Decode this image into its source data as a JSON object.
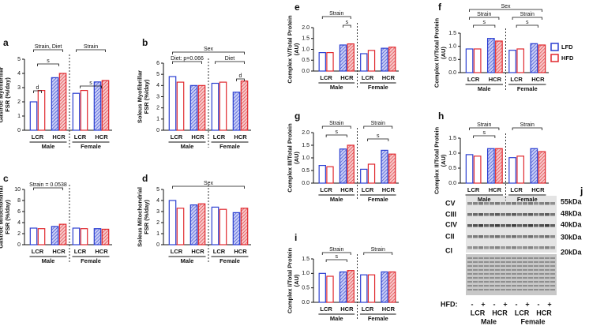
{
  "legend": [
    {
      "name": "LFD",
      "color": "#2b3fd1"
    },
    {
      "name": "HFD",
      "color": "#e0282e"
    }
  ],
  "chart_data": [
    {
      "type": "bar",
      "panel": "a",
      "y_label": [
        "Gastroc Myofibrillar",
        "FSR (%/day)"
      ],
      "groups": [
        "LCR",
        "HCR",
        "LCR",
        "HCR"
      ],
      "sexes": [
        "Male",
        "Female"
      ],
      "series": [
        {
          "values": [
            2.0,
            3.7,
            2.6,
            3.4
          ]
        },
        {
          "values": [
            2.8,
            4.0,
            2.8,
            3.5
          ]
        }
      ],
      "ylim": [
        0,
        5
      ],
      "yticks": [
        0,
        1,
        2,
        3,
        4,
        5
      ],
      "annotations": [
        "Strain, Diet",
        "Strain",
        "s",
        "d",
        "s"
      ]
    },
    {
      "type": "bar",
      "panel": "b",
      "y_label": [
        "Soleus Myofibrillar",
        "FSR (%/day)"
      ],
      "groups": [
        "LCR",
        "HCR",
        "LCR",
        "HCR"
      ],
      "sexes": [
        "Male",
        "Female"
      ],
      "series": [
        {
          "values": [
            4.8,
            4.0,
            4.2,
            3.4
          ]
        },
        {
          "values": [
            4.3,
            4.0,
            4.3,
            4.4
          ]
        }
      ],
      "ylim": [
        0,
        6
      ],
      "yticks": [
        0,
        1,
        2,
        3,
        4,
        5,
        6
      ],
      "annotations": [
        "Sex",
        "Diet: p=0.066",
        "Diet",
        "d"
      ]
    },
    {
      "type": "bar",
      "panel": "c",
      "y_label": [
        "Gastroc Mitochondrial",
        "FSR (%/day)"
      ],
      "groups": [
        "LCR",
        "HCR",
        "LCR",
        "HCR"
      ],
      "sexes": [
        "Male",
        "Female"
      ],
      "series": [
        {
          "values": [
            3.0,
            3.3,
            3.0,
            2.9
          ]
        },
        {
          "values": [
            2.9,
            3.7,
            2.9,
            2.8
          ]
        }
      ],
      "ylim": [
        0,
        10
      ],
      "yticks": [
        0,
        2,
        4,
        6,
        8,
        10
      ],
      "annotations": [
        "Strain = 0.0538"
      ]
    },
    {
      "type": "bar",
      "panel": "d",
      "y_label": [
        "Soleus Mitochondrial",
        "FSR (%/day)"
      ],
      "groups": [
        "LCR",
        "HCR",
        "LCR",
        "HCR"
      ],
      "sexes": [
        "Male",
        "Female"
      ],
      "series": [
        {
          "values": [
            4.0,
            3.6,
            3.4,
            2.9
          ]
        },
        {
          "values": [
            3.3,
            3.7,
            3.2,
            3.3
          ]
        }
      ],
      "ylim": [
        0,
        5
      ],
      "yticks": [
        0,
        1,
        2,
        3,
        4,
        5
      ],
      "annotations": [
        "Sex"
      ]
    },
    {
      "type": "bar",
      "panel": "e",
      "y_label": [
        "Complex V/Total Protein",
        "(AU)"
      ],
      "groups": [
        "LCR",
        "HCR",
        "LCR",
        "HCR"
      ],
      "sexes": [
        "Male",
        "Female"
      ],
      "series": [
        {
          "values": [
            0.85,
            1.2,
            0.8,
            1.05
          ]
        },
        {
          "values": [
            0.85,
            1.25,
            0.95,
            1.1
          ]
        }
      ],
      "ylim": [
        0,
        2
      ],
      "yticks": [
        {
          "value": 0,
          "label": "0.0"
        },
        {
          "value": 0.5,
          "label": "0.5"
        },
        {
          "value": 1,
          "label": "1.0"
        },
        {
          "value": 1.5,
          "label": "1.5"
        },
        {
          "value": 2,
          "label": "2.0"
        }
      ],
      "annotations": [
        "Strain",
        "s"
      ]
    },
    {
      "type": "bar",
      "panel": "f",
      "y_label": [
        "Complex IV/Total Protein",
        "(AU)"
      ],
      "groups": [
        "LCR",
        "HCR",
        "LCR",
        "HCR"
      ],
      "sexes": [
        "Male",
        "Female"
      ],
      "series": [
        {
          "values": [
            0.9,
            1.3,
            0.85,
            1.1
          ]
        },
        {
          "values": [
            0.9,
            1.2,
            0.9,
            1.05
          ]
        }
      ],
      "ylim": [
        0,
        1.5
      ],
      "yticks": [
        {
          "value": 0,
          "label": "0.0"
        },
        {
          "value": 0.5,
          "label": "0.5"
        },
        {
          "value": 1,
          "label": "1.0"
        },
        {
          "value": 1.5,
          "label": "1.5"
        }
      ],
      "annotations": [
        "Sex",
        "Strain",
        "Strain",
        "s",
        "s"
      ]
    },
    {
      "type": "bar",
      "panel": "g",
      "y_label": [
        "Complex III/Total Protein",
        "(AU)"
      ],
      "groups": [
        "LCR",
        "HCR",
        "LCR",
        "HCR"
      ],
      "sexes": [
        "Male",
        "Female"
      ],
      "series": [
        {
          "values": [
            0.7,
            1.35,
            0.55,
            1.3
          ]
        },
        {
          "values": [
            0.65,
            1.5,
            0.75,
            1.15
          ]
        }
      ],
      "ylim": [
        0,
        2
      ],
      "yticks": [
        {
          "value": 0,
          "label": "0.0"
        },
        {
          "value": 0.5,
          "label": "0.5"
        },
        {
          "value": 1,
          "label": "1.0"
        },
        {
          "value": 1.5,
          "label": "1.5"
        },
        {
          "value": 2,
          "label": "2.0"
        }
      ],
      "annotations": [
        "Strain",
        "Strain",
        "s",
        "s"
      ]
    },
    {
      "type": "bar",
      "panel": "h",
      "y_label": [
        "Complex II/Total Protein",
        "(AU)"
      ],
      "groups": [
        "LCR",
        "HCR",
        "LCR",
        "HCR"
      ],
      "sexes": [
        "Male",
        "Female"
      ],
      "series": [
        {
          "values": [
            0.95,
            1.15,
            0.85,
            1.15
          ]
        },
        {
          "values": [
            0.9,
            1.15,
            0.9,
            1.05
          ]
        }
      ],
      "ylim": [
        0,
        1.5
      ],
      "yticks": [
        {
          "value": 0,
          "label": "0.0"
        },
        {
          "value": 0.5,
          "label": "0.5"
        },
        {
          "value": 1,
          "label": "1.0"
        },
        {
          "value": 1.5,
          "label": "1.5"
        }
      ],
      "annotations": [
        "Strain",
        "Strain",
        "s"
      ]
    },
    {
      "type": "bar",
      "panel": "i",
      "y_label": [
        "Complex I/Total Protein",
        "(AU)"
      ],
      "groups": [
        "LCR",
        "HCR",
        "LCR",
        "HCR"
      ],
      "sexes": [
        "Male",
        "Female"
      ],
      "series": [
        {
          "values": [
            1.0,
            1.05,
            0.95,
            1.05
          ]
        },
        {
          "values": [
            0.9,
            1.1,
            0.95,
            1.05
          ]
        }
      ],
      "ylim": [
        0,
        1.5
      ],
      "yticks": [
        {
          "value": 0,
          "label": "0.0"
        },
        {
          "value": 0.5,
          "label": "0.5"
        },
        {
          "value": 1,
          "label": "1.0"
        },
        {
          "value": 1.5,
          "label": "1.5"
        }
      ],
      "annotations": [
        "Strain",
        "Strain",
        "s"
      ]
    }
  ],
  "blot": {
    "panel": "j",
    "complexes": [
      "CV",
      "CIII",
      "CIV",
      "CII",
      "CI"
    ],
    "weights": [
      "55kDa",
      "48kDa",
      "40kDa",
      "30kDa",
      "20kDa"
    ],
    "hfd_label": "HFD:",
    "hfd_signs": [
      "-",
      "+",
      "-",
      "+",
      "-",
      "+",
      "-",
      "+"
    ],
    "strains": [
      "LCR",
      "HCR",
      "LCR",
      "HCR"
    ],
    "sexes": [
      "Male",
      "Female"
    ]
  }
}
